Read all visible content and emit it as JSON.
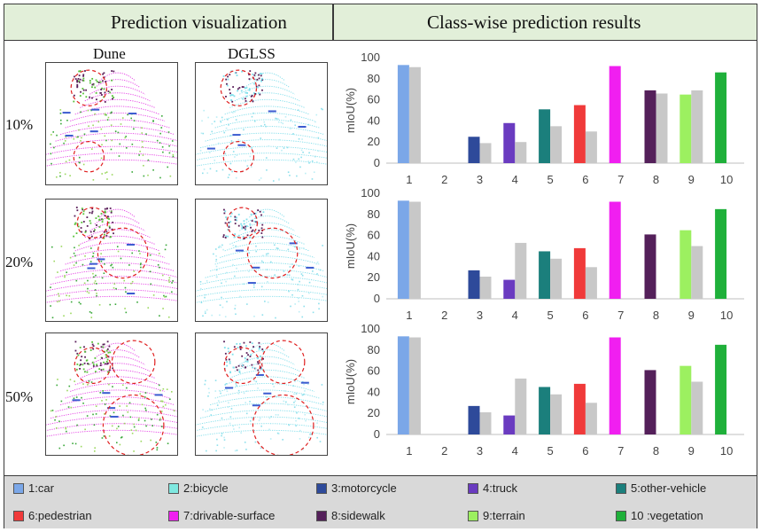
{
  "header": {
    "left_title": "Prediction visualization",
    "right_title": "Class-wise prediction results"
  },
  "visualization": {
    "columns": [
      "Dune",
      "DGLSS"
    ],
    "rows": [
      "10%",
      "20%",
      "50%"
    ]
  },
  "legend": [
    {
      "label": "1:car",
      "color": "#7ba7e8"
    },
    {
      "label": "2:bicycle",
      "color": "#7fe8e0"
    },
    {
      "label": "3:motorcycle",
      "color": "#2e4a9a"
    },
    {
      "label": "4:truck",
      "color": "#6a3bc0"
    },
    {
      "label": "5:other-vehicle",
      "color": "#1b7f7c"
    },
    {
      "label": "6:pedestrian",
      "color": "#f03a3a"
    },
    {
      "label": "7:drivable-surface",
      "color": "#f01ff0"
    },
    {
      "label": "8:sidewalk",
      "color": "#54205a"
    },
    {
      "label": "9:terrain",
      "color": "#9cf060"
    },
    {
      "label": "10 :vegetation",
      "color": "#1fb03a"
    }
  ],
  "chart_data": [
    {
      "type": "bar",
      "title": "10%",
      "ylabel": "mIoU(%)",
      "ylim": [
        0,
        100
      ],
      "yticks": [
        0,
        20,
        40,
        60,
        80,
        100
      ],
      "categories": [
        "1",
        "2",
        "3",
        "4",
        "5",
        "6",
        "7",
        "8",
        "9",
        "10"
      ],
      "series": [
        {
          "name": "class-colored",
          "values": [
            93,
            0,
            25,
            38,
            51,
            55,
            92,
            69,
            65,
            86
          ]
        },
        {
          "name": "gray",
          "color": "#c8c8c8",
          "values": [
            91,
            0,
            19,
            20,
            35,
            30,
            0,
            66,
            69,
            0
          ]
        }
      ]
    },
    {
      "type": "bar",
      "title": "20%",
      "ylabel": "mIoU(%)",
      "ylim": [
        0,
        100
      ],
      "yticks": [
        0,
        20,
        40,
        60,
        80,
        100
      ],
      "categories": [
        "1",
        "2",
        "3",
        "4",
        "5",
        "6",
        "7",
        "8",
        "9",
        "10"
      ],
      "series": [
        {
          "name": "class-colored",
          "values": [
            93,
            0,
            27,
            18,
            45,
            48,
            92,
            61,
            65,
            85
          ]
        },
        {
          "name": "gray",
          "color": "#c8c8c8",
          "values": [
            92,
            0,
            21,
            53,
            38,
            30,
            0,
            0,
            50,
            0
          ]
        }
      ]
    },
    {
      "type": "bar",
      "title": "50%",
      "ylabel": "mIoU(%)",
      "ylim": [
        0,
        100
      ],
      "yticks": [
        0,
        20,
        40,
        60,
        80,
        100
      ],
      "categories": [
        "1",
        "2",
        "3",
        "4",
        "5",
        "6",
        "7",
        "8",
        "9",
        "10"
      ],
      "series": [
        {
          "name": "class-colored",
          "values": [
            93,
            0,
            27,
            18,
            45,
            48,
            92,
            61,
            65,
            85
          ]
        },
        {
          "name": "gray",
          "color": "#c8c8c8",
          "values": [
            92,
            0,
            21,
            53,
            38,
            30,
            0,
            0,
            50,
            0
          ]
        }
      ]
    }
  ]
}
